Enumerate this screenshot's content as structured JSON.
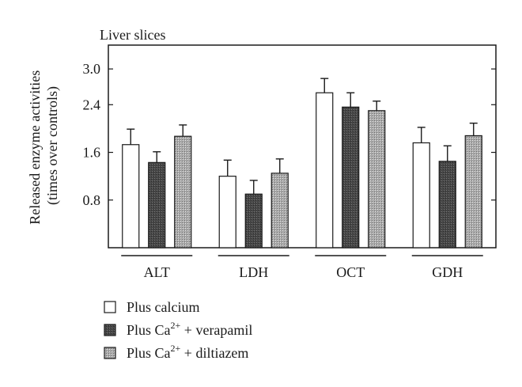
{
  "chart_data": {
    "type": "bar",
    "title": "Liver slices",
    "ylabel_lines": [
      "Released enzyme activities",
      "(times over controls)"
    ],
    "ylim": [
      0,
      3.4
    ],
    "yticks": [
      0.8,
      1.6,
      2.4,
      3.0
    ],
    "ytick_labels": [
      "0.8",
      "1.6",
      "2.4",
      "3.0"
    ],
    "categories": [
      "ALT",
      "LDH",
      "OCT",
      "GDH"
    ],
    "series": [
      {
        "name": "Plus calcium",
        "name_base": "Plus calcium",
        "name_sup": "",
        "name_tail": "",
        "values": [
          1.73,
          1.2,
          2.6,
          1.76
        ],
        "errors": [
          0.26,
          0.27,
          0.24,
          0.26
        ],
        "fill": "white"
      },
      {
        "name": "Plus Ca2+ + verapamil",
        "name_base": "Plus Ca",
        "name_sup": "2+",
        "name_tail": " + verapamil",
        "values": [
          1.43,
          0.9,
          2.36,
          1.45
        ],
        "errors": [
          0.18,
          0.23,
          0.24,
          0.26
        ],
        "fill": "dark"
      },
      {
        "name": "Plus Ca2+ + diltiazem",
        "name_base": "Plus Ca",
        "name_sup": "2+",
        "name_tail": " + diltiazem",
        "values": [
          1.87,
          1.25,
          2.3,
          1.88
        ],
        "errors": [
          0.19,
          0.24,
          0.16,
          0.21
        ],
        "fill": "dotted"
      }
    ],
    "grid": false,
    "legend_position": "bottom-left"
  }
}
